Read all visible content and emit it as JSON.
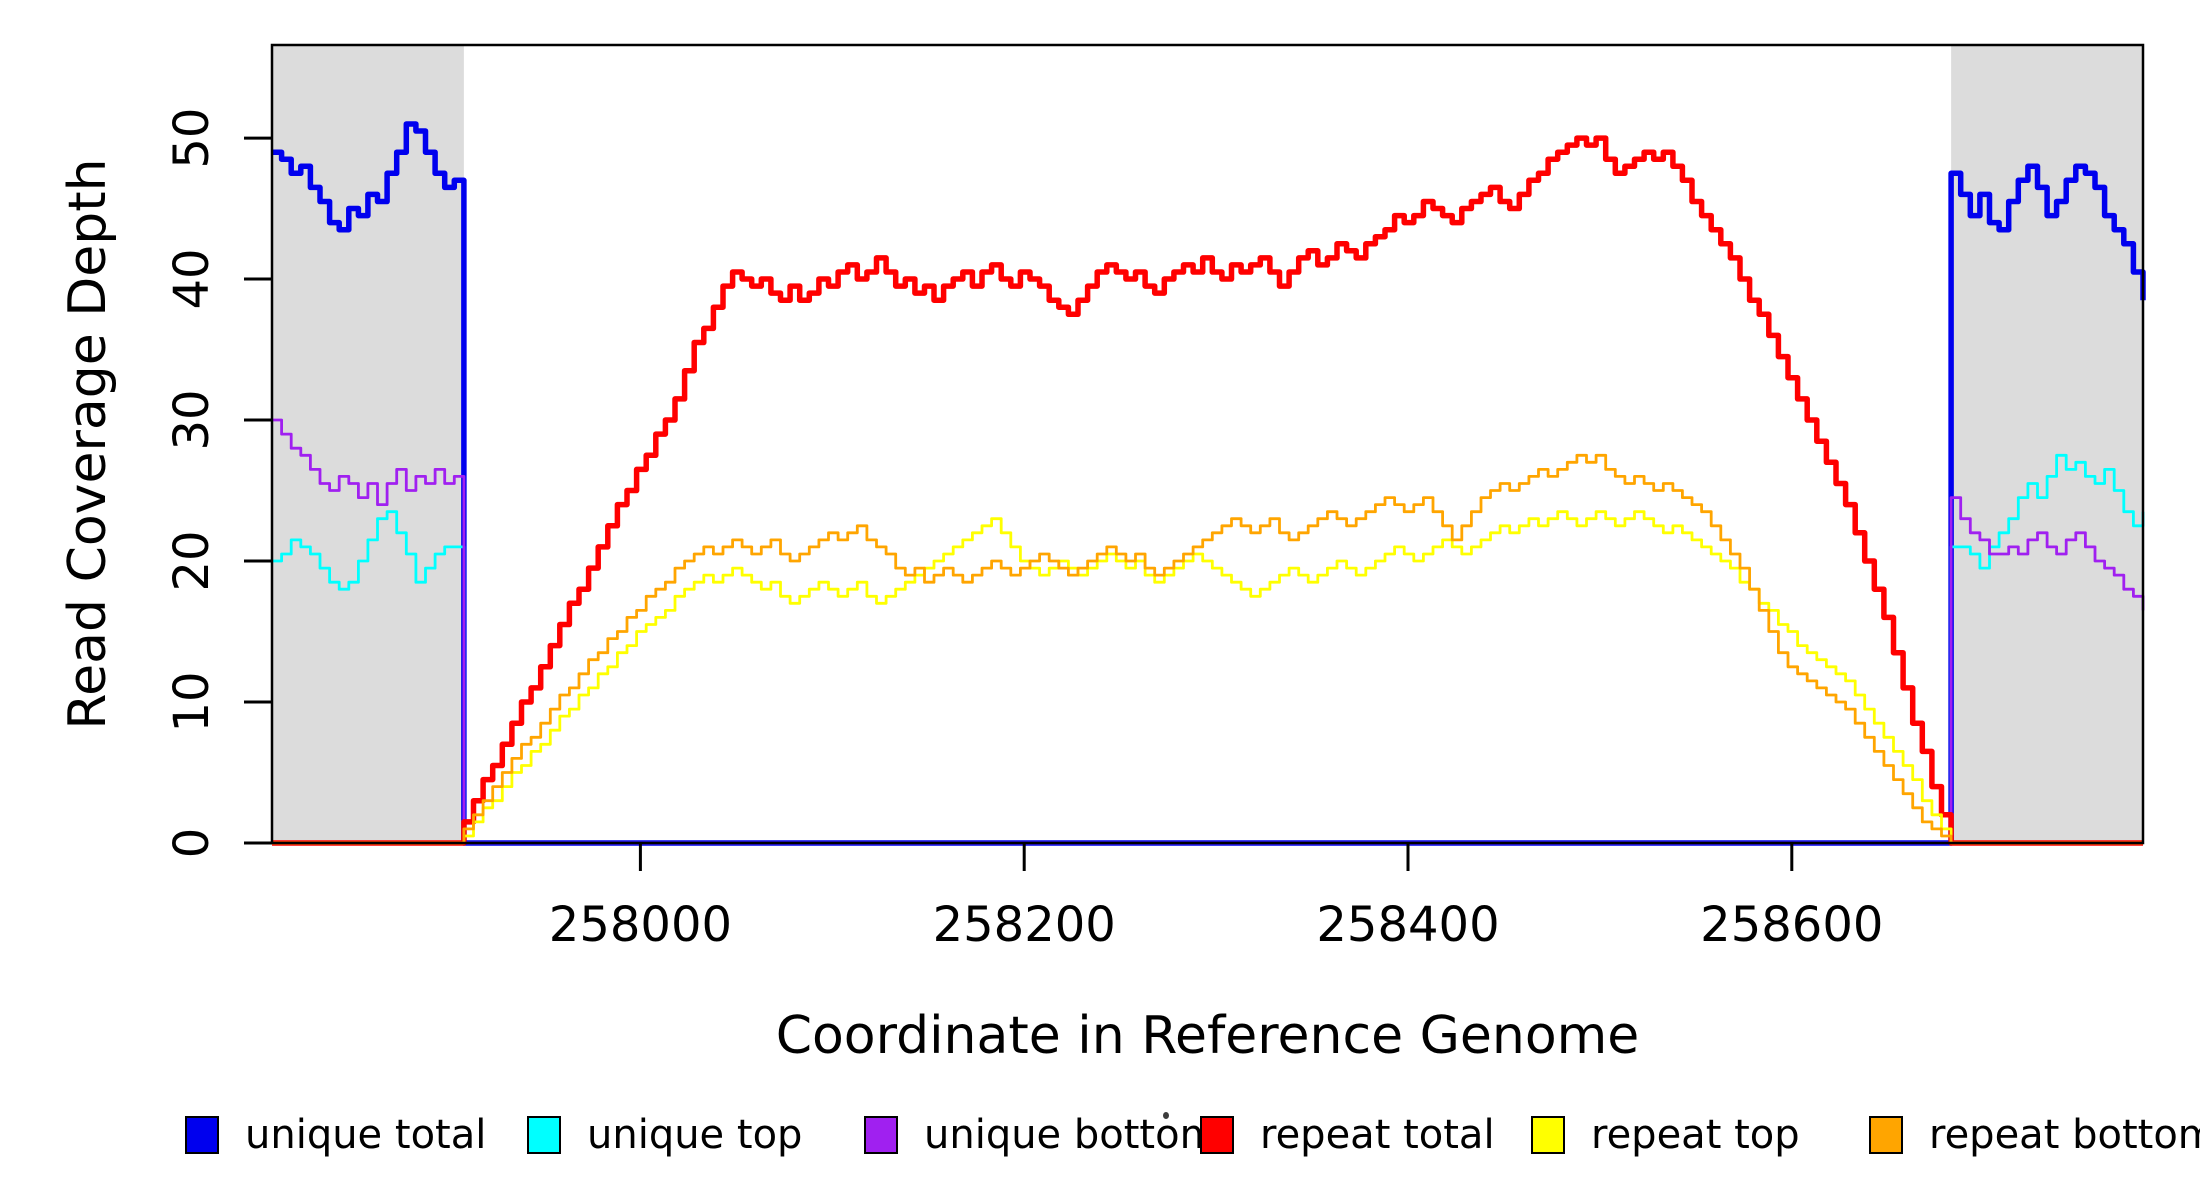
{
  "chart_data": {
    "type": "line",
    "style": "step",
    "title": "",
    "xlabel": "Coordinate in Reference Genome",
    "ylabel": "Read Coverage Depth",
    "xlim": [
      257808,
      258783
    ],
    "ylim": [
      0,
      56.6
    ],
    "x_ticks": [
      258000,
      258200,
      258400,
      258600
    ],
    "y_ticks": [
      0,
      10,
      20,
      30,
      40,
      50
    ],
    "grid": false,
    "legend_position": "bottom",
    "background": "#FFFFFF",
    "shaded_color": "#DCDCDC",
    "shaded_regions": [
      {
        "x0": 257808,
        "x1": 257908
      },
      {
        "x0": 258683,
        "x1": 258783
      }
    ],
    "x0": 257808,
    "dx": 5,
    "n_points": 196,
    "fill_value": 0,
    "series": [
      {
        "name": "unique total",
        "color": "#0000EE",
        "width": 5.5,
        "segments": [
          {
            "i0": 0,
            "values": [
              49,
              48.5,
              47.5,
              48,
              46.5,
              45.5,
              44,
              43.5,
              45,
              44.5,
              46,
              45.5,
              47.5,
              49,
              51,
              50.5,
              49,
              47.5,
              46.5,
              47
            ]
          },
          {
            "i0": 175,
            "values": [
              47.5,
              46,
              44.5,
              46,
              44,
              43.5,
              45.5,
              47,
              48,
              46.5,
              44.5,
              45.5,
              47,
              48,
              47.5,
              46.5,
              44.5,
              43.5,
              42.5,
              40.5,
              38.5
            ]
          }
        ]
      },
      {
        "name": "unique top",
        "color": "#00FFFF",
        "width": 2.8,
        "segments": [
          {
            "i0": 0,
            "values": [
              20,
              20.5,
              21.5,
              21,
              20.5,
              19.5,
              18.5,
              18,
              18.5,
              20,
              21.5,
              23,
              23.5,
              22,
              20.5,
              18.5,
              19.5,
              20.5,
              21,
              21
            ]
          },
          {
            "i0": 175,
            "values": [
              21,
              21,
              20.5,
              19.5,
              21,
              22,
              23,
              24.5,
              25.5,
              24.5,
              26,
              27.5,
              26.5,
              27,
              26,
              25.5,
              26.5,
              25,
              23.5,
              22.5,
              23.5
            ]
          }
        ]
      },
      {
        "name": "unique bottom",
        "color": "#A020F0",
        "width": 2.8,
        "segments": [
          {
            "i0": 0,
            "values": [
              30,
              29,
              28,
              27.5,
              26.5,
              25.5,
              25,
              26,
              25.5,
              24.5,
              25.5,
              24,
              25.5,
              26.5,
              25,
              26,
              25.5,
              26.5,
              25.5,
              26
            ]
          },
          {
            "i0": 175,
            "values": [
              24.5,
              23,
              22,
              21.5,
              20.5,
              20.5,
              21,
              20.5,
              21.5,
              22,
              21,
              20.5,
              21.5,
              22,
              21,
              20,
              19.5,
              19,
              18,
              17.5,
              16.5
            ]
          }
        ]
      },
      {
        "name": "repeat total",
        "color": "#FF0000",
        "width": 5.5,
        "segments": [
          {
            "i0": 20,
            "values": [
              1.5,
              3,
              4.5,
              5.5,
              7,
              8.5,
              10,
              11,
              12.5,
              14,
              15.5,
              17,
              18,
              19.5,
              21,
              22.5,
              24,
              25,
              26.5,
              27.5,
              29,
              30,
              31.5,
              33.5,
              35.5,
              36.5,
              38,
              39.5,
              40.5,
              40,
              39.5,
              40,
              39,
              38.5,
              39.5,
              38.5,
              39,
              40,
              39.5,
              40.5,
              41,
              40,
              40.5,
              41.5,
              40.5,
              39.5,
              40,
              39,
              39.5,
              38.5,
              39.5,
              40,
              40.5,
              39.5,
              40.5,
              41,
              40,
              39.5,
              40.5,
              40,
              39.5,
              38.5,
              38,
              37.5,
              38.5,
              39.5,
              40.5,
              41,
              40.5,
              40,
              40.5,
              39.5,
              39,
              40,
              40.5,
              41,
              40.5,
              41.5,
              40.5,
              40,
              41,
              40.5,
              41,
              41.5,
              40.5,
              39.5,
              40.5,
              41.5,
              42,
              41,
              41.5,
              42.5,
              42,
              41.5,
              42.5,
              43,
              43.5,
              44.5,
              44,
              44.5,
              45.5,
              45,
              44.5,
              44,
              45,
              45.5,
              46,
              46.5,
              45.5,
              45,
              46,
              47,
              47.5,
              48.5,
              49,
              49.5,
              50,
              49.5,
              50,
              48.5,
              47.5,
              48,
              48.5,
              49,
              48.5,
              49,
              48,
              47,
              45.5,
              44.5,
              43.5,
              42.5,
              41.5,
              40,
              38.5,
              37.5,
              36,
              34.5,
              33,
              31.5,
              30,
              28.5,
              27,
              25.5,
              24,
              22,
              20,
              18,
              16,
              13.5,
              11,
              8.5,
              6.5,
              4,
              2
            ]
          }
        ]
      },
      {
        "name": "repeat top",
        "color": "#FFFF00",
        "width": 2.8,
        "segments": [
          {
            "i0": 20,
            "values": [
              0.5,
              1.5,
              2.5,
              3,
              4,
              5,
              5.5,
              6.5,
              7,
              8,
              9,
              9.5,
              10.5,
              11,
              12,
              12.5,
              13.5,
              14,
              15,
              15.5,
              16,
              16.5,
              17.5,
              18,
              18.5,
              19,
              18.5,
              19,
              19.5,
              19,
              18.5,
              18,
              18.5,
              17.5,
              17,
              17.5,
              18,
              18.5,
              18,
              17.5,
              18,
              18.5,
              17.5,
              17,
              17.5,
              18,
              18.5,
              19,
              19.5,
              20,
              20.5,
              21,
              21.5,
              22,
              22.5,
              23,
              22,
              21,
              20,
              19.5,
              19,
              19.5,
              20,
              19.5,
              19,
              19.5,
              20,
              20.5,
              20,
              19.5,
              20,
              19,
              18.5,
              19,
              19.5,
              20,
              20.5,
              20,
              19.5,
              19,
              18.5,
              18,
              17.5,
              18,
              18.5,
              19,
              19.5,
              19,
              18.5,
              19,
              19.5,
              20,
              19.5,
              19,
              19.5,
              20,
              20.5,
              21,
              20.5,
              20,
              20.5,
              21,
              21.5,
              21,
              20.5,
              21,
              21.5,
              22,
              22.5,
              22,
              22.5,
              23,
              22.5,
              23,
              23.5,
              23,
              22.5,
              23,
              23.5,
              23,
              22.5,
              23,
              23.5,
              23,
              22.5,
              22,
              22.5,
              22,
              21.5,
              21,
              20.5,
              20,
              19.5,
              18.5,
              18,
              17,
              16.5,
              15.5,
              15,
              14,
              13.5,
              13,
              12.5,
              12,
              11.5,
              10.5,
              9.5,
              8.5,
              7.5,
              6.5,
              5.5,
              4.5,
              3,
              2,
              1
            ]
          }
        ]
      },
      {
        "name": "repeat bottom",
        "color": "#FFA500",
        "width": 2.8,
        "segments": [
          {
            "i0": 20,
            "values": [
              1,
              2,
              3,
              4,
              5,
              6,
              7,
              7.5,
              8.5,
              9.5,
              10.5,
              11,
              12,
              13,
              13.5,
              14.5,
              15,
              16,
              16.5,
              17.5,
              18,
              18.5,
              19.5,
              20,
              20.5,
              21,
              20.5,
              21,
              21.5,
              21,
              20.5,
              21,
              21.5,
              20.5,
              20,
              20.5,
              21,
              21.5,
              22,
              21.5,
              22,
              22.5,
              21.5,
              21,
              20.5,
              19.5,
              19,
              19.5,
              18.5,
              19,
              19.5,
              19,
              18.5,
              19,
              19.5,
              20,
              19.5,
              19,
              19.5,
              20,
              20.5,
              20,
              19.5,
              19,
              19.5,
              20,
              20.5,
              21,
              20.5,
              20,
              20.5,
              19.5,
              19,
              19.5,
              20,
              20.5,
              21,
              21.5,
              22,
              22.5,
              23,
              22.5,
              22,
              22.5,
              23,
              22,
              21.5,
              22,
              22.5,
              23,
              23.5,
              23,
              22.5,
              23,
              23.5,
              24,
              24.5,
              24,
              23.5,
              24,
              24.5,
              23.5,
              22.5,
              21.5,
              22.5,
              23.5,
              24.5,
              25,
              25.5,
              25,
              25.5,
              26,
              26.5,
              26,
              26.5,
              27,
              27.5,
              27,
              27.5,
              26.5,
              26,
              25.5,
              26,
              25.5,
              25,
              25.5,
              25,
              24.5,
              24,
              23.5,
              22.5,
              21.5,
              20.5,
              19.5,
              18,
              16.5,
              15,
              13.5,
              12.5,
              12,
              11.5,
              11,
              10.5,
              10,
              9.5,
              8.5,
              7.5,
              6.5,
              5.5,
              4.5,
              3.5,
              2.5,
              1.5,
              1,
              0.5
            ]
          }
        ]
      }
    ]
  },
  "legend": {
    "items": [
      "unique total",
      "unique top",
      "unique bottom",
      "repeat total",
      "repeat top",
      "repeat bottom"
    ]
  }
}
